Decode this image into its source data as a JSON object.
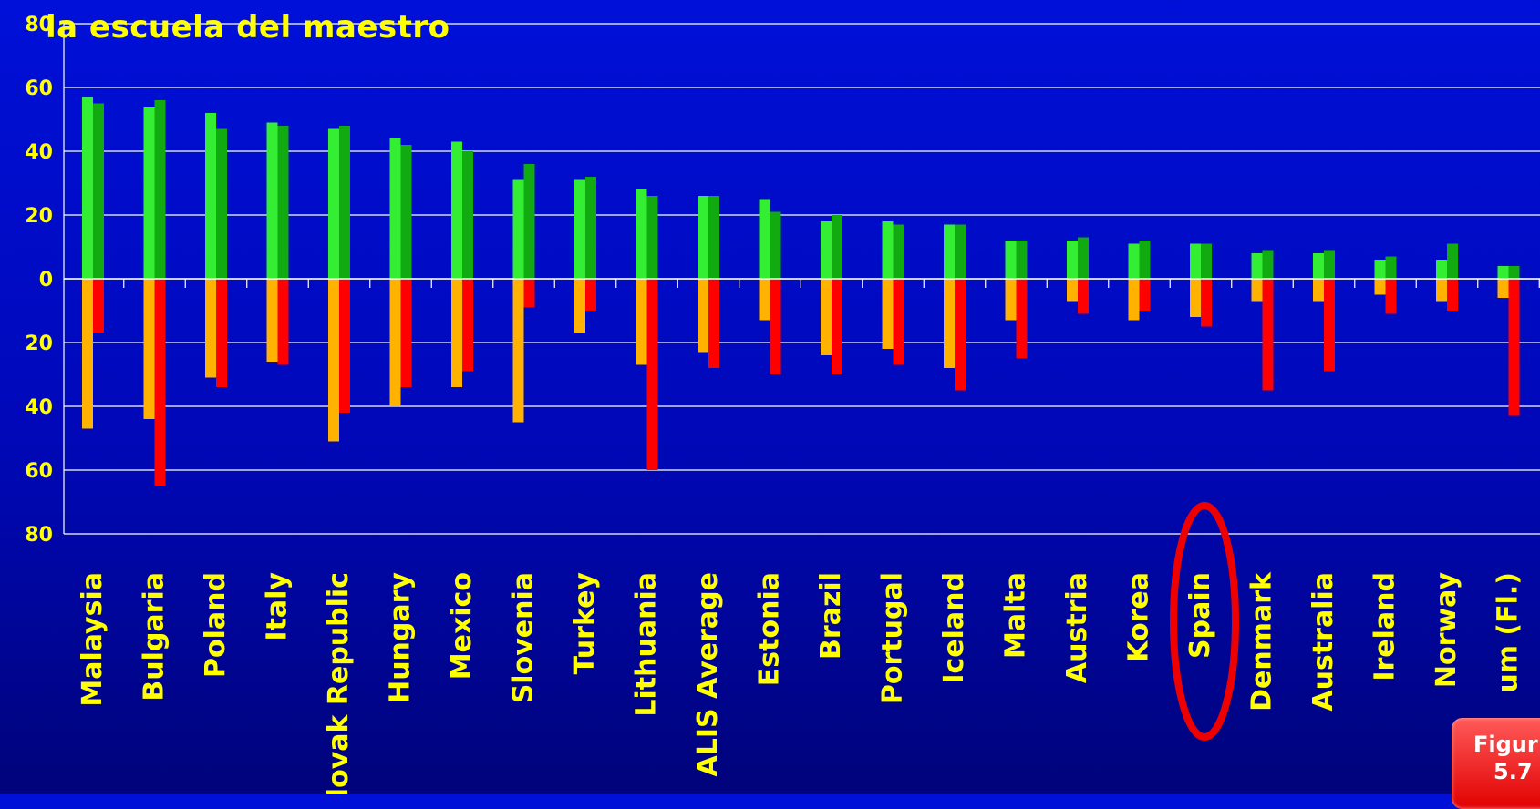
{
  "title": "la escuela del maestro",
  "badge": {
    "line1": "Figur",
    "line2": "5.7"
  },
  "highlight": {
    "category": "Spain",
    "color": "#ee0000"
  },
  "colors": {
    "positive_series_1": "#33ee33",
    "positive_series_2": "#11aa11",
    "negative_series_1": "#ffb300",
    "negative_series_2": "#ff0000",
    "label": "#ffff00",
    "grid": "#ffffff"
  },
  "chart_data": {
    "type": "bar",
    "title": "la escuela del maestro",
    "ylim": [
      -80,
      80
    ],
    "yticks": [
      {
        "value": 80,
        "label": "80"
      },
      {
        "value": 60,
        "label": "60"
      },
      {
        "value": 40,
        "label": "40"
      },
      {
        "value": 20,
        "label": "20"
      },
      {
        "value": 0,
        "label": "0"
      },
      {
        "value": -20,
        "label": "20"
      },
      {
        "value": -40,
        "label": "40"
      },
      {
        "value": -60,
        "label": "60"
      },
      {
        "value": -80,
        "label": "80"
      }
    ],
    "grid": true,
    "categories": [
      "Malaysia",
      "Bulgaria",
      "Poland",
      "Italy",
      "lovak Republic",
      "Hungary",
      "Mexico",
      "Slovenia",
      "Turkey",
      "Lithuania",
      "ALIS Average",
      "Estonia",
      "Brazil",
      "Portugal",
      "Iceland",
      "Malta",
      "Austria",
      "Korea",
      "Spain",
      "Denmark",
      "Australia",
      "Ireland",
      "Norway",
      "um (Fl.)"
    ],
    "series": [
      {
        "values": [
          57,
          54,
          52,
          49,
          47,
          44,
          43,
          31,
          31,
          28,
          26,
          25,
          18,
          18,
          17,
          12,
          12,
          11,
          11,
          8,
          8,
          6,
          6,
          4
        ]
      },
      {
        "values": [
          55,
          56,
          47,
          48,
          48,
          42,
          40,
          36,
          32,
          26,
          26,
          21,
          20,
          17,
          17,
          12,
          13,
          12,
          11,
          9,
          9,
          7,
          11,
          4
        ]
      },
      {
        "values": [
          -47,
          -44,
          -31,
          -26,
          -51,
          -40,
          -34,
          -45,
          -17,
          -27,
          -23,
          -13,
          -24,
          -22,
          -28,
          -13,
          -7,
          -13,
          -12,
          -7,
          -7,
          -5,
          -7,
          -6
        ]
      },
      {
        "values": [
          -17,
          -65,
          -34,
          -27,
          -42,
          -34,
          -29,
          -9,
          -10,
          -60,
          -28,
          -30,
          -30,
          -27,
          -35,
          -25,
          -11,
          -10,
          -15,
          -35,
          -29,
          -11,
          -10,
          -43
        ]
      }
    ]
  }
}
